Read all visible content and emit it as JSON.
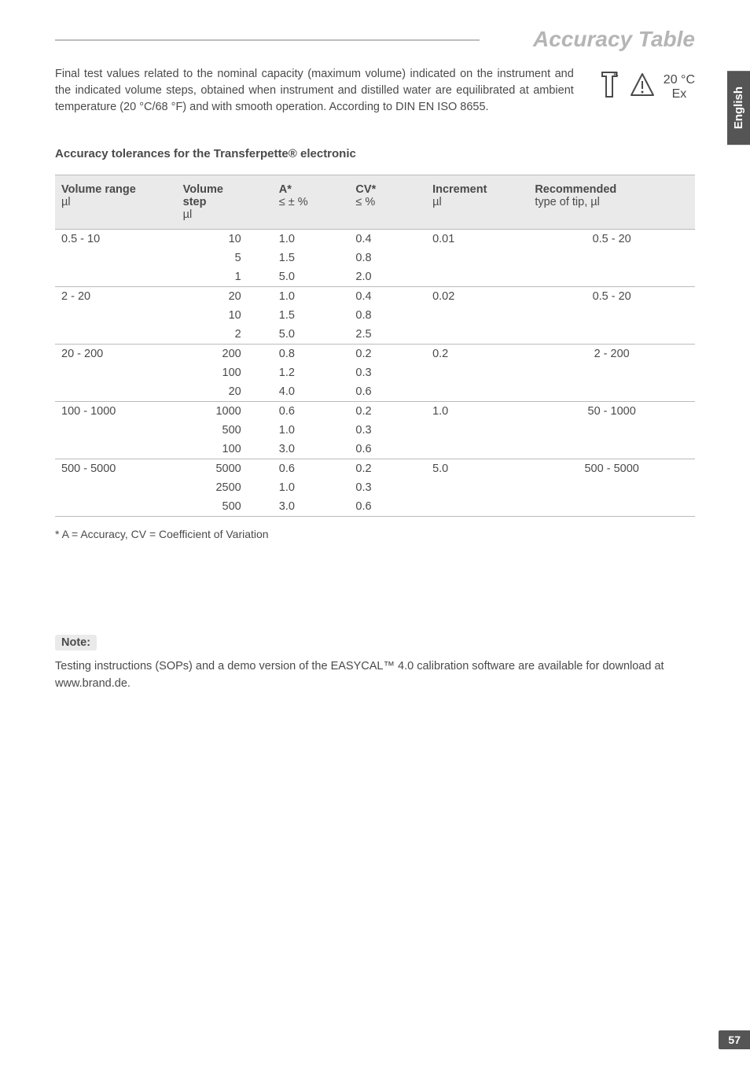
{
  "title": "Accuracy Table",
  "lang_tab": "English",
  "intro": "Final test values related to the nominal capacity (maximum volume) indicated on the instrument and the indicated volume steps, obtained when instrument and distilled water are equilibrated at ambient temperature (20 °C/68 °F) and with smooth operation. According to DIN EN ISO 8655.",
  "temp_line1": "20 °C",
  "temp_line2": "Ex",
  "section_heading": "Accuracy tolerances for the Transferpette® electronic",
  "columns": {
    "range_head": "Volume range",
    "range_sub": "µl",
    "step_head": "Volume step",
    "step_sub": "µl",
    "a_head": "A*",
    "a_sub": "≤ ± %",
    "cv_head": "CV*",
    "cv_sub": "≤ %",
    "inc_head": "Increment",
    "inc_sub": "µl",
    "tip_head": "Recommended",
    "tip_sub": "type of tip, µl"
  },
  "groups": [
    {
      "range": "0.5  -    10",
      "increment": "0.01",
      "tip": "0.5 -     20",
      "rows": [
        {
          "step": "10",
          "a": "1.0",
          "cv": "0.4"
        },
        {
          "step": "5",
          "a": "1.5",
          "cv": "0.8"
        },
        {
          "step": "1",
          "a": "5.0",
          "cv": "2.0"
        }
      ]
    },
    {
      "range": "2  -    20",
      "increment": "0.02",
      "tip": "0.5 -     20",
      "rows": [
        {
          "step": "20",
          "a": "1.0",
          "cv": "0.4"
        },
        {
          "step": "10",
          "a": "1.5",
          "cv": "0.8"
        },
        {
          "step": "2",
          "a": "5.0",
          "cv": "2.5"
        }
      ]
    },
    {
      "range": "20  -  200",
      "increment": "0.2",
      "tip": "2 -   200",
      "rows": [
        {
          "step": "200",
          "a": "0.8",
          "cv": "0.2"
        },
        {
          "step": "100",
          "a": "1.2",
          "cv": "0.3"
        },
        {
          "step": "20",
          "a": "4.0",
          "cv": "0.6"
        }
      ]
    },
    {
      "range": "100  - 1000",
      "increment": "1.0",
      "tip": "50 - 1000",
      "rows": [
        {
          "step": "1000",
          "a": "0.6",
          "cv": "0.2"
        },
        {
          "step": "500",
          "a": "1.0",
          "cv": "0.3"
        },
        {
          "step": "100",
          "a": "3.0",
          "cv": "0.6"
        }
      ]
    },
    {
      "range": "500  - 5000",
      "increment": "5.0",
      "tip": "500 - 5000",
      "rows": [
        {
          "step": "5000",
          "a": "0.6",
          "cv": "0.2"
        },
        {
          "step": "2500",
          "a": "1.0",
          "cv": "0.3"
        },
        {
          "step": "500",
          "a": "3.0",
          "cv": "0.6"
        }
      ]
    }
  ],
  "footnote": "* A = Accuracy, CV = Coefficient of Variation",
  "note_label": "Note:",
  "note_text": "Testing instructions (SOPs) and a demo version of the EASYCAL™ 4.0 calibration software are available for download at www.brand.de.",
  "page_number": "57",
  "style": {
    "text_color": "#4a4a4a",
    "title_color": "#b5b5b5",
    "header_bg": "#eaeaea",
    "rule_color": "#bdbdbd",
    "tab_bg": "#555555",
    "tab_fg": "#ffffff"
  }
}
